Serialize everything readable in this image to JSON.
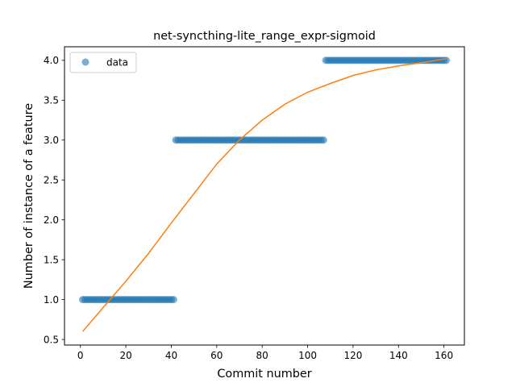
{
  "chart_data": {
    "type": "scatter",
    "title": "net-syncthing-lite_range_expr-sigmoid",
    "xlabel": "Commit number",
    "ylabel": "Number of instance of a feature",
    "xlim": [
      -7,
      169
    ],
    "ylim": [
      0.43,
      4.17
    ],
    "xticks": [
      0,
      20,
      40,
      60,
      80,
      100,
      120,
      140,
      160
    ],
    "yticks": [
      0.5,
      1.0,
      1.5,
      2.0,
      2.5,
      3.0,
      3.5,
      4.0
    ],
    "ytick_labels": [
      "0.5",
      "1.0",
      "1.5",
      "2.0",
      "2.5",
      "3.0",
      "3.5",
      "4.0"
    ],
    "grid": false,
    "legend": {
      "position": "top-left",
      "entries": [
        "data"
      ]
    },
    "colors": {
      "data": "#1f77b4",
      "fit": "#ff7f0e"
    },
    "series": [
      {
        "name": "data",
        "kind": "points",
        "steps": [
          {
            "x_from": 1,
            "x_to": 41,
            "y": 1.0
          },
          {
            "x_from": 42,
            "x_to": 107,
            "y": 3.0
          },
          {
            "x_from": 108,
            "x_to": 161,
            "y": 4.0
          }
        ]
      },
      {
        "kind": "line",
        "x": [
          1,
          10,
          20,
          30,
          40,
          50,
          60,
          70,
          80,
          90,
          100,
          110,
          120,
          130,
          140,
          150,
          161
        ],
        "y": [
          0.6,
          0.9,
          1.23,
          1.58,
          1.96,
          2.33,
          2.7,
          3.0,
          3.25,
          3.45,
          3.6,
          3.71,
          3.81,
          3.88,
          3.93,
          3.97,
          4.02
        ]
      }
    ]
  }
}
